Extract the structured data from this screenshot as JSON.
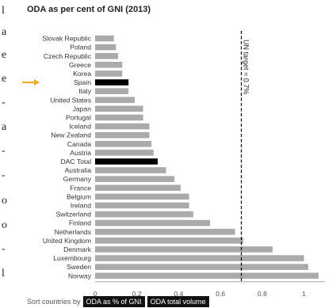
{
  "left_strip": [
    "l",
    "a",
    "e",
    "e",
    "-",
    "a",
    "-",
    "-",
    "o",
    "o",
    "-",
    "l"
  ],
  "sort": {
    "label": "Sort countries by",
    "option_percent": "ODA as % of GNI",
    "option_volume": "ODA total volume"
  },
  "colors": {
    "bar": "#aaaaaa",
    "highlight": "#000000",
    "arrow": "#f5a623",
    "target_line": "#000000"
  },
  "chart_data": {
    "type": "bar",
    "orientation": "horizontal",
    "title": "ODA as per cent of GNI (2013)",
    "categories": [
      "Slovak Republic",
      "Poland",
      "Czech Republic",
      "Greece",
      "Korea",
      "Spain",
      "Italy",
      "United States",
      "Japan",
      "Portugal",
      "Iceland",
      "New Zealand",
      "Canada",
      "Austria",
      "DAC Total",
      "Australia",
      "Germany",
      "France",
      "Belgium",
      "Ireland",
      "Switzerland",
      "Finland",
      "Netherlands",
      "United Kingdom",
      "Denmark",
      "Luxembourg",
      "Sweden",
      "Norway"
    ],
    "values": [
      0.09,
      0.1,
      0.11,
      0.13,
      0.13,
      0.16,
      0.16,
      0.19,
      0.23,
      0.23,
      0.26,
      0.26,
      0.27,
      0.28,
      0.3,
      0.34,
      0.38,
      0.41,
      0.45,
      0.45,
      0.47,
      0.55,
      0.67,
      0.71,
      0.85,
      1.0,
      1.02,
      1.07
    ],
    "highlighted": [
      "Spain",
      "DAC Total"
    ],
    "arrow_marker": "Spain",
    "xlim": [
      0,
      1.1
    ],
    "xticks": [
      "0",
      "0.2",
      "0.4",
      "0.6",
      "0.8",
      "1"
    ],
    "reference_line": {
      "value": 0.7,
      "label": "UN target = 0.7%",
      "style": "dashed"
    },
    "grid": false
  }
}
